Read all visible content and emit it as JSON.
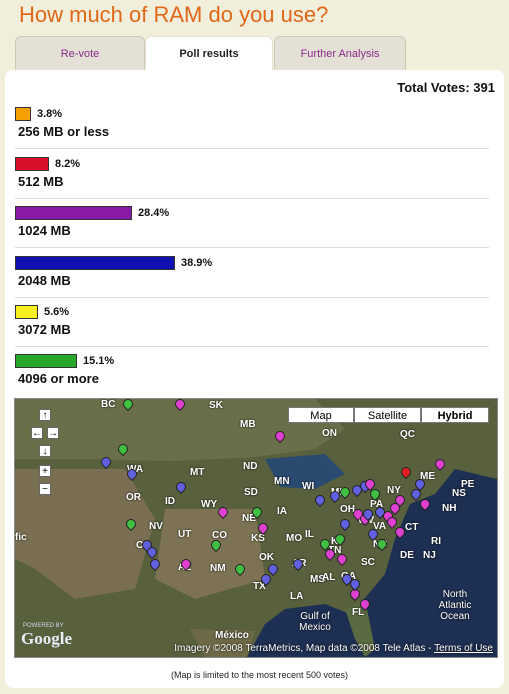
{
  "title": "How much of RAM do you use?",
  "tabs": [
    {
      "label": "Re-vote"
    },
    {
      "label": "Poll results"
    },
    {
      "label": "Further Analysis"
    }
  ],
  "total_votes": "Total Votes: 391",
  "options": [
    {
      "label": "256 MB or less",
      "percent": "3.8%",
      "value": 3.8,
      "color": "#f5a000"
    },
    {
      "label": "512 MB",
      "percent": "8.2%",
      "value": 8.2,
      "color": "#d8102a"
    },
    {
      "label": "1024 MB",
      "percent": "28.4%",
      "value": 28.4,
      "color": "#8a1aa8"
    },
    {
      "label": "2048 MB",
      "percent": "38.9%",
      "value": 38.9,
      "color": "#1010b0"
    },
    {
      "label": "3072 MB",
      "percent": "5.6%",
      "value": 5.6,
      "color": "#f8f020"
    },
    {
      "label": "4096 or more",
      "percent": "15.1%",
      "value": 15.1,
      "color": "#28a828"
    }
  ],
  "map": {
    "type_buttons": [
      "Map",
      "Satellite",
      "Hybrid"
    ],
    "selected_type": "Hybrid",
    "nav": {
      "up": "↑",
      "left": "←",
      "right": "→",
      "down": "↓",
      "zoom_in": "+",
      "zoom_out": "−"
    },
    "labels": [
      "BC",
      "SK",
      "QC",
      "ON",
      "MB",
      "ND",
      "MT",
      "WA",
      "OR",
      "ID",
      "WY",
      "SD",
      "NE",
      "MN",
      "WI",
      "MI",
      "IA",
      "IL",
      "NV",
      "UT",
      "CO",
      "KS",
      "MO",
      "CA",
      "AZ",
      "NM",
      "OK",
      "AR",
      "TN",
      "KY",
      "TX",
      "LA",
      "MS",
      "AL",
      "GA",
      "SC",
      "NC",
      "VA",
      "FL",
      "WV",
      "OH",
      "PA",
      "NY",
      "ME",
      "NH",
      "NS",
      "PE",
      "CT",
      "RI",
      "DE",
      "NJ",
      "México",
      "Gulf of Mexico",
      "North Atlantic Ocean",
      "fic"
    ],
    "powered_by": "POWERED BY",
    "logo": "Google",
    "attribution": "Imagery ©2008 TerraMetrics, Map data ©2008 Tele Atlas - ",
    "terms": "Terms of Use"
  },
  "footnote": "(Map is limited to the most recent 500 votes)"
}
